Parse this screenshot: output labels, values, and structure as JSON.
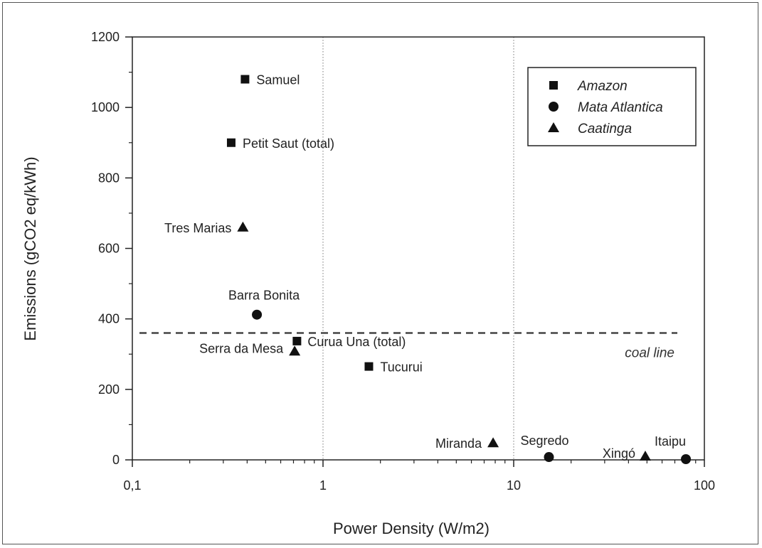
{
  "chart_data": {
    "type": "scatter",
    "xlabel": "Power Density (W/m2)",
    "ylabel": "Emissions (gCO2 eq/kWh)",
    "xscale": "log",
    "xlim": [
      0.1,
      100
    ],
    "ylim": [
      0,
      1200
    ],
    "xticks": [
      {
        "value": 0.1,
        "label": "0,1"
      },
      {
        "value": 1,
        "label": "1"
      },
      {
        "value": 10,
        "label": "10"
      },
      {
        "value": 100,
        "label": "100"
      }
    ],
    "yticks": [
      0,
      200,
      400,
      600,
      800,
      1000,
      1200
    ],
    "grid": "vertical dotted lines at x=1 and x=10",
    "legend_position": "top-right",
    "series": [
      {
        "name": "Amazon",
        "marker": "square",
        "points": [
          {
            "label": "Samuel",
            "x": 0.39,
            "y": 1080
          },
          {
            "label": "Petit Saut (total)",
            "x": 0.33,
            "y": 900
          },
          {
            "label": "Curua Una (total)",
            "x": 0.73,
            "y": 337
          },
          {
            "label": "Tucurui",
            "x": 1.74,
            "y": 265
          }
        ]
      },
      {
        "name": "Mata Atlantica",
        "marker": "circle",
        "points": [
          {
            "label": "Barra Bonita",
            "x": 0.45,
            "y": 412
          },
          {
            "label": "Segredo",
            "x": 15.3,
            "y": 8
          },
          {
            "label": "Itaipu",
            "x": 80,
            "y": 2
          }
        ]
      },
      {
        "name": "Caatinga",
        "marker": "triangle",
        "points": [
          {
            "label": "Tres Marias",
            "x": 0.38,
            "y": 660
          },
          {
            "label": "Serra da Mesa",
            "x": 0.71,
            "y": 308
          },
          {
            "label": "Miranda",
            "x": 7.8,
            "y": 48
          },
          {
            "label": "Xingó",
            "x": 49,
            "y": 10
          }
        ]
      }
    ],
    "reference_line": {
      "label": "coal line",
      "y": 360,
      "style": "dashed"
    }
  }
}
